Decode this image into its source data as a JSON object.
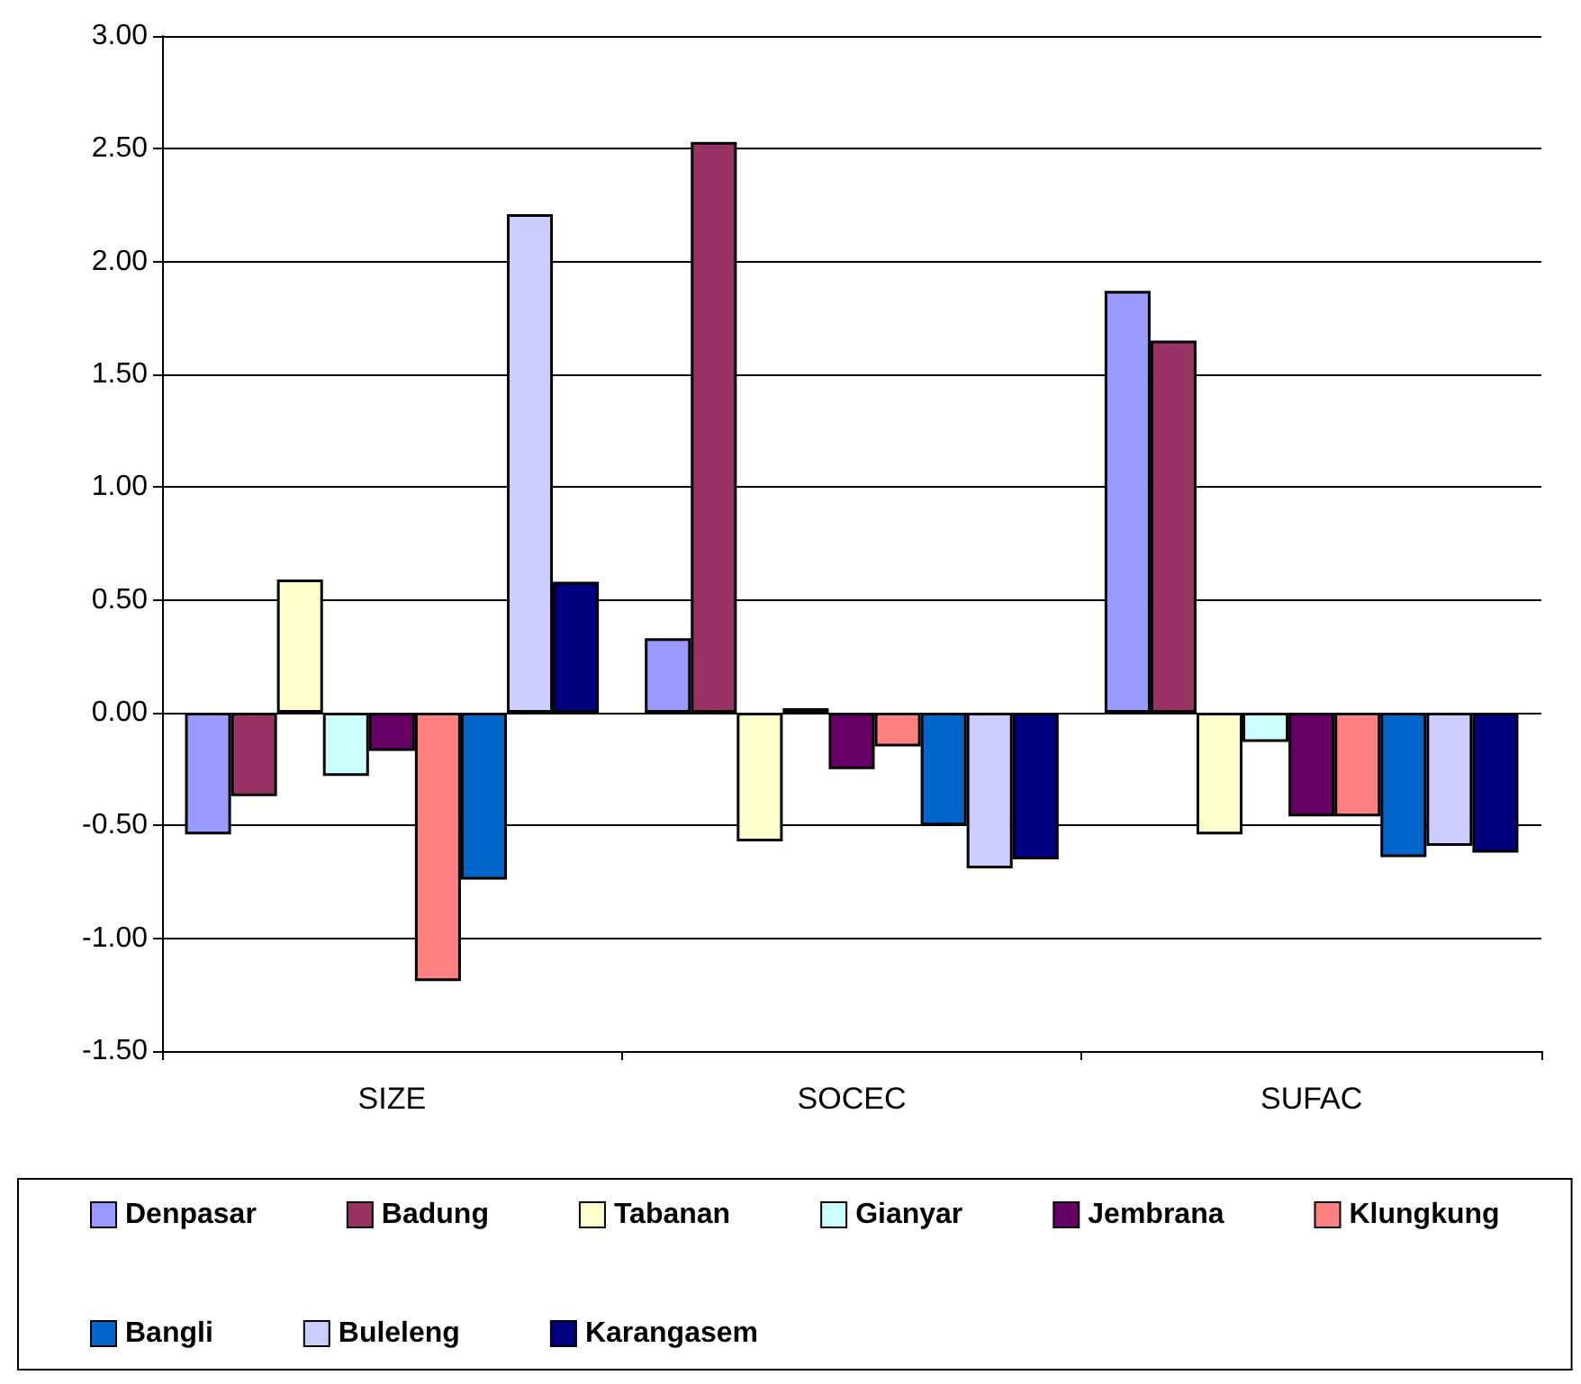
{
  "chart_data": {
    "type": "bar",
    "categories": [
      "SIZE",
      "SOCEC",
      "SUFAC"
    ],
    "series": [
      {
        "name": "Denpasar",
        "color": "#9999ff",
        "values": [
          -0.54,
          0.33,
          1.87
        ]
      },
      {
        "name": "Badung",
        "color": "#993366",
        "values": [
          -0.37,
          2.53,
          1.65
        ]
      },
      {
        "name": "Tabanan",
        "color": "#ffffcc",
        "values": [
          0.59,
          -0.57,
          -0.54
        ]
      },
      {
        "name": "Gianyar",
        "color": "#ccffff",
        "values": [
          -0.28,
          0.02,
          -0.13
        ]
      },
      {
        "name": "Jembrana",
        "color": "#660066",
        "values": [
          -0.17,
          -0.25,
          -0.46
        ]
      },
      {
        "name": "Klungkung",
        "color": "#ff8080",
        "values": [
          -1.19,
          -0.15,
          -0.46
        ]
      },
      {
        "name": "Bangli",
        "color": "#0066cc",
        "values": [
          -0.74,
          -0.5,
          -0.64
        ]
      },
      {
        "name": "Buleleng",
        "color": "#ccccff",
        "values": [
          2.21,
          -0.69,
          -0.59
        ]
      },
      {
        "name": "Karangasem",
        "color": "#000080",
        "values": [
          0.58,
          -0.65,
          -0.62
        ]
      }
    ],
    "ylim": [
      -1.5,
      3
    ],
    "yticks": [
      {
        "value": -1.5,
        "label": "-1.50"
      },
      {
        "value": -1,
        "label": "-1.00"
      },
      {
        "value": -0.5,
        "label": "-0.50"
      },
      {
        "value": 0,
        "label": "0.00"
      },
      {
        "value": 0.5,
        "label": "0.50"
      },
      {
        "value": 1,
        "label": "1.00"
      },
      {
        "value": 1.5,
        "label": "1.50"
      },
      {
        "value": 2,
        "label": "2.00"
      },
      {
        "value": 2.5,
        "label": "2.50"
      },
      {
        "value": 3,
        "label": "3.00"
      }
    ],
    "grid": "y",
    "legend": "bottom"
  }
}
